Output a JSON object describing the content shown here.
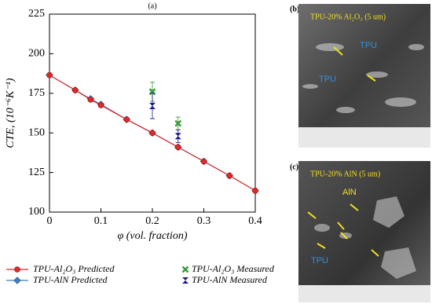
{
  "chart_data": {
    "type": "line",
    "panel_label": "(a)",
    "x_label": "φ (vol. fraction)",
    "y_label": "CTE, (10⁻⁶K⁻¹)",
    "xlim": [
      0,
      0.4
    ],
    "xticks": [
      0,
      0.1,
      0.2,
      0.3,
      0.4
    ],
    "ylim": [
      100,
      225
    ],
    "yticks": [
      100,
      125,
      150,
      175,
      200,
      225
    ],
    "series": [
      {
        "name": "TPU-AlN Predicted",
        "color": "#3b7dc4",
        "marker": "diamond",
        "line": true,
        "x": [
          0,
          0.05,
          0.08,
          0.1,
          0.15,
          0.2,
          0.25,
          0.3,
          0.35,
          0.4
        ],
        "values": [
          186.5,
          177,
          171.5,
          168,
          158.5,
          150,
          141,
          132,
          123,
          113.5
        ]
      },
      {
        "name": "TPU-Al₂O₃ Predicted",
        "color": "#e0282a",
        "marker": "circle",
        "line": true,
        "x": [
          0,
          0.05,
          0.08,
          0.1,
          0.15,
          0.2,
          0.25,
          0.3,
          0.35,
          0.4
        ],
        "values": [
          186.5,
          177,
          171,
          167.5,
          158.5,
          150,
          141,
          132,
          123,
          113.5
        ]
      },
      {
        "name": "TPU-Al₂O₃ Measured",
        "color": "#3a9a3a",
        "marker": "x",
        "line": false,
        "x": [
          0.2,
          0.25
        ],
        "values": [
          176,
          156
        ],
        "errors": [
          6,
          4
        ]
      },
      {
        "name": "TPU-AlN Measured",
        "color": "#1a1a8c",
        "marker": "hourglass",
        "line": false,
        "x": [
          0.2,
          0.25
        ],
        "values": [
          167,
          148
        ],
        "errors": [
          8,
          4
        ]
      }
    ]
  },
  "images": [
    {
      "label": "(b)",
      "caption": "TPU-20% Al₂O₃ (5 um)",
      "tags": [
        "TPU",
        "TPU"
      ]
    },
    {
      "label": "(c)",
      "caption": "TPU-20% AlN (5 um)",
      "tags": [
        "AlN",
        "TPU"
      ]
    }
  ]
}
